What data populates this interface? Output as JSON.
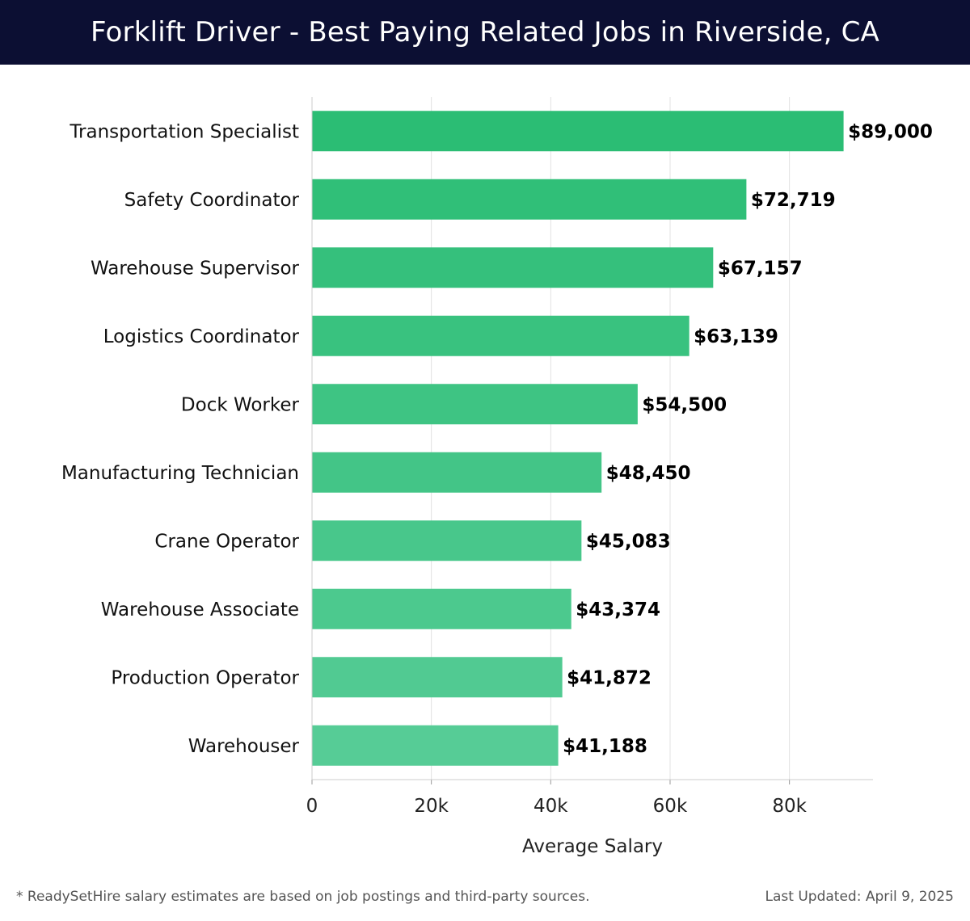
{
  "header": {
    "title": "Forklift Driver - Best Paying Related Jobs in Riverside, CA"
  },
  "footer": {
    "note": "* ReadySetHire salary estimates are based on job postings and third-party sources.",
    "updated": "Last Updated: April 9, 2025"
  },
  "colors": {
    "header_bg": "#0c0f33",
    "bar_top": "#2bbd74",
    "bar_bottom": "#56cc96",
    "grid": "#e2e2e2",
    "axis": "#cccccc"
  },
  "chart_data": {
    "type": "bar",
    "orientation": "horizontal",
    "title": "Forklift Driver - Best Paying Related Jobs in Riverside, CA",
    "xlabel": "Average Salary",
    "ylabel": "",
    "xlim": [
      0,
      94000
    ],
    "ticks": [
      0,
      20000,
      40000,
      60000,
      80000
    ],
    "tick_labels": [
      "0",
      "20k",
      "40k",
      "60k",
      "80k"
    ],
    "grid": true,
    "categories": [
      "Transportation Specialist",
      "Safety Coordinator",
      "Warehouse Supervisor",
      "Logistics Coordinator",
      "Dock Worker",
      "Manufacturing Technician",
      "Crane Operator",
      "Warehouse Associate",
      "Production Operator",
      "Warehouser"
    ],
    "values": [
      89000,
      72719,
      67157,
      63139,
      54500,
      48450,
      45083,
      43374,
      41872,
      41188
    ],
    "value_labels": [
      "$89,000",
      "$72,719",
      "$67,157",
      "$63,139",
      "$54,500",
      "$48,450",
      "$45,083",
      "$43,374",
      "$41,872",
      "$41,188"
    ]
  }
}
